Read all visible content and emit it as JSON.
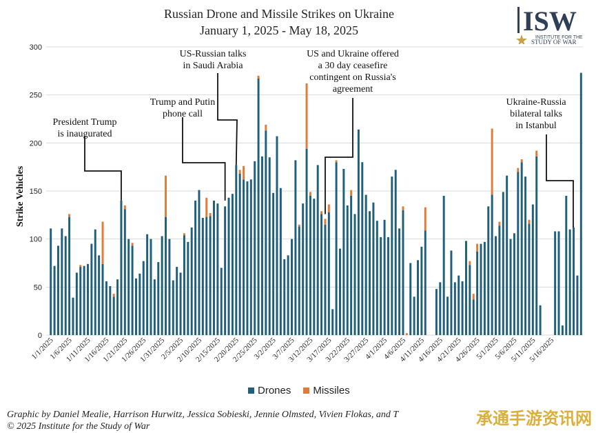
{
  "title_line1": "Russian Drone and Missile Strikes on Ukraine",
  "title_line2": "January 1, 2025 - May 18, 2025",
  "logo": {
    "main": "ISW",
    "sub1": "INSTITUTE FOR THE",
    "sub2": "STUDY OF WAR",
    "color": "#2f3f55"
  },
  "credits_line1": "Graphic by Daniel Mealie, Harrison Hurwitz, Jessica Sobieski, Jennie Olmsted, Vivien Flokas, and T",
  "credits_line2": "© 2025 Institute for the Study of War",
  "watermark": "承通手游资讯网",
  "chart_data": {
    "type": "bar",
    "stacked": true,
    "ylabel": "Strike Vehicles",
    "xlabel": "",
    "ylim": [
      0,
      300
    ],
    "yticks": [
      0,
      50,
      100,
      150,
      200,
      250,
      300
    ],
    "grid": "horizontal",
    "legend_position": "bottom",
    "start_date": "2025-01-01",
    "x_tick_labels": [
      "1/1/2025",
      "1/6/2025",
      "1/11/2025",
      "1/16/2025",
      "1/21/2025",
      "1/26/2025",
      "1/31/2025",
      "2/5/2025",
      "2/10/2025",
      "2/15/2025",
      "2/20/2025",
      "2/25/2025",
      "3/2/2025",
      "3/7/2025",
      "3/12/2025",
      "3/17/2025",
      "3/22/2025",
      "3/27/2025",
      "4/1/2025",
      "4/6/2025",
      "4/11/2025",
      "4/16/2025",
      "4/21/2025",
      "4/26/2025",
      "5/1/2025",
      "5/6/2025",
      "5/11/2025",
      "5/16/2025"
    ],
    "series": [
      {
        "name": "Drones",
        "color": "#1f5f7a",
        "values": [
          111,
          72,
          93,
          111,
          103,
          123,
          39,
          65,
          71,
          72,
          74,
          95,
          110,
          83,
          74,
          56,
          51,
          40,
          58,
          140,
          131,
          100,
          93,
          59,
          64,
          77,
          105,
          100,
          58,
          76,
          103,
          123,
          100,
          57,
          71,
          65,
          104,
          97,
          112,
          140,
          151,
          122,
          123,
          124,
          140,
          137,
          70,
          134,
          143,
          147,
          177,
          168,
          162,
          160,
          162,
          181,
          267,
          186,
          213,
          185,
          148,
          207,
          153,
          79,
          83,
          100,
          182,
          113,
          137,
          194,
          145,
          142,
          177,
          126,
          115,
          128,
          27,
          180,
          90,
          173,
          135,
          145,
          126,
          214,
          180,
          146,
          129,
          138,
          119,
          102,
          120,
          102,
          165,
          172,
          111,
          130,
          0,
          75,
          40,
          78,
          92,
          109,
          0,
          0,
          48,
          55,
          145,
          40,
          88,
          55,
          62,
          56,
          98,
          73,
          37,
          87,
          95,
          97,
          134,
          146,
          103,
          114,
          149,
          166,
          100,
          106,
          170,
          180,
          165,
          116,
          136,
          186,
          31,
          0,
          0,
          0,
          108,
          108,
          10,
          145,
          110,
          112,
          62,
          273
        ]
      },
      {
        "name": "Missiles",
        "color": "#e07b39",
        "values": [
          0,
          0,
          0,
          0,
          0,
          3,
          0,
          0,
          2,
          0,
          0,
          0,
          0,
          0,
          44,
          0,
          0,
          3,
          0,
          0,
          4,
          0,
          3,
          0,
          0,
          0,
          0,
          0,
          0,
          0,
          0,
          43,
          0,
          0,
          0,
          0,
          2,
          0,
          0,
          0,
          0,
          0,
          20,
          3,
          0,
          0,
          0,
          0,
          0,
          0,
          0,
          4,
          14,
          0,
          0,
          0,
          3,
          0,
          6,
          0,
          0,
          0,
          0,
          0,
          0,
          0,
          0,
          2,
          0,
          68,
          4,
          0,
          0,
          3,
          6,
          8,
          0,
          2,
          0,
          0,
          0,
          6,
          0,
          0,
          0,
          0,
          0,
          0,
          0,
          0,
          0,
          0,
          0,
          0,
          0,
          4,
          2,
          0,
          0,
          0,
          0,
          24,
          0,
          0,
          0,
          0,
          0,
          0,
          0,
          0,
          0,
          0,
          0,
          4,
          6,
          8,
          0,
          0,
          0,
          69,
          0,
          4,
          0,
          0,
          0,
          0,
          4,
          3,
          0,
          4,
          0,
          6,
          0,
          0,
          0,
          0,
          0,
          0,
          0,
          0,
          0,
          0,
          0,
          0
        ]
      }
    ],
    "annotations": [
      {
        "text": [
          "President Trump",
          "is inaugurated"
        ],
        "date_index": 19
      },
      {
        "text": [
          "Trump and Putin",
          "phone call"
        ],
        "date_index": 47
      },
      {
        "text": [
          "US-Russian talks",
          "in Saudi Arabia"
        ],
        "date_index": 50
      },
      {
        "text": [
          "US and Ukraine offered",
          "a 30 day ceasefire",
          "contingent on Russia's",
          "agreement"
        ],
        "date_index": 71
      },
      {
        "text": [
          "Ukraine-Russia",
          "bilateral talks",
          "in Istanbul"
        ],
        "date_index": 142
      }
    ]
  }
}
